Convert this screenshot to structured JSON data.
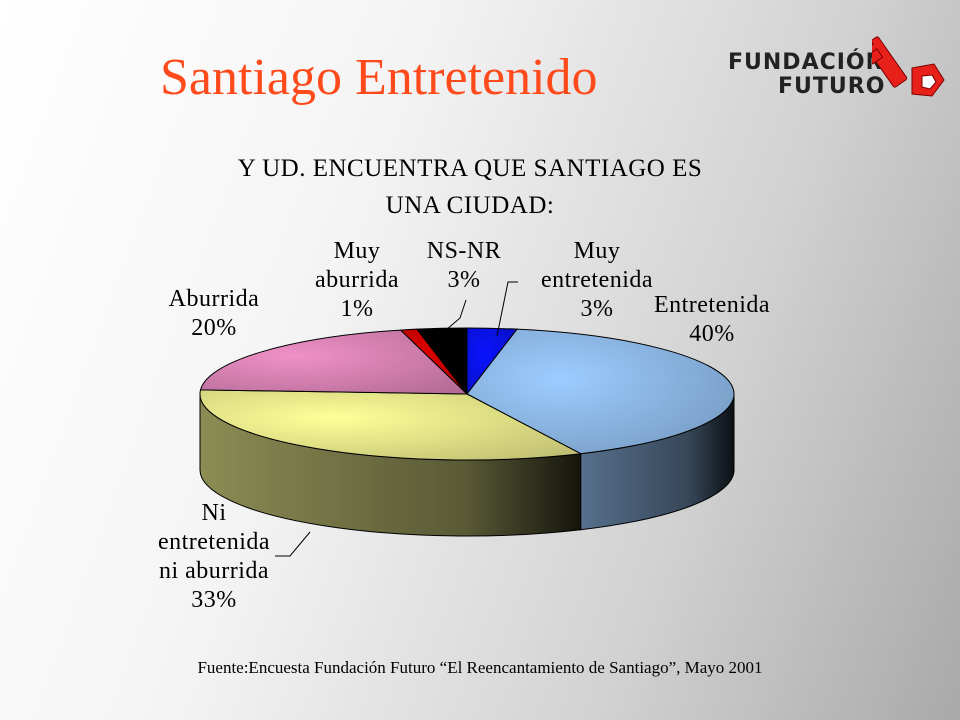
{
  "slide": {
    "title": "Santiago Entretenido",
    "source": "Fuente:Encuesta Fundación Futuro  “El Reencantamiento de Santiago”, Mayo 2001"
  },
  "logo": {
    "line1": "FUNDACIÓN",
    "line2": "FUTURO",
    "icon": "key-icon",
    "color": "#e8201a"
  },
  "chart_data": {
    "type": "pie",
    "title": "Y UD. ENCUENTRA QUE SANTIAGO ES UNA CIUDAD:",
    "title_lines": [
      "Y UD. ENCUENTRA QUE SANTIAGO ES",
      "UNA CIUDAD:"
    ],
    "style": "3d",
    "slices": [
      {
        "label": "Muy entretenida",
        "value": 3,
        "display": "3%",
        "color": "#0a14ff"
      },
      {
        "label": "Entretenida",
        "value": 40,
        "display": "40%",
        "color": "#9cccff"
      },
      {
        "label": "Ni entretenida ni aburrida",
        "value": 33,
        "display": "33%",
        "color": "#ffff99"
      },
      {
        "label": "Aburrida",
        "value": 20,
        "display": "20%",
        "color": "#f090c8"
      },
      {
        "label": "Muy aburrida",
        "value": 1,
        "display": "1%",
        "color": "#e00000"
      },
      {
        "label": "NS-NR",
        "value": 3,
        "display": "3%",
        "color": "#000000"
      }
    ]
  }
}
